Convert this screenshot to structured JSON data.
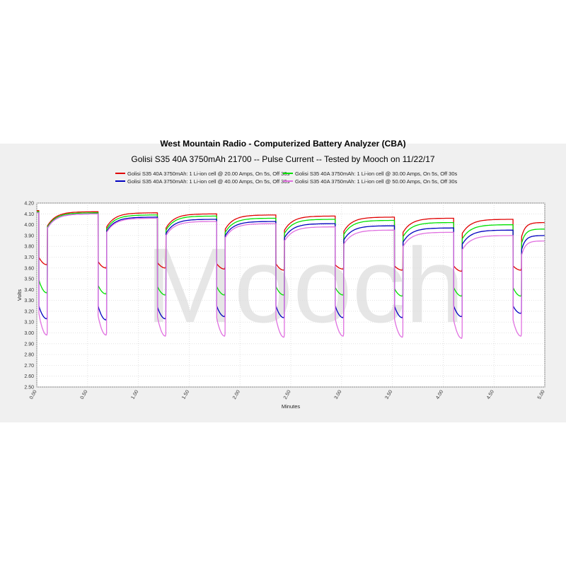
{
  "title": "West Mountain Radio - Computerized Battery Analyzer (CBA)",
  "subtitle": "Golisi S35 40A 3750mAh 21700 -- Pulse Current -- Tested by Mooch on 11/22/17",
  "watermark": "Mooch",
  "chart_data": {
    "type": "line",
    "title": "West Mountain Radio - Computerized Battery Analyzer (CBA)",
    "subtitle": "Golisi S35 40A 3750mAh 21700 -- Pulse Current -- Tested by Mooch on 11/22/17",
    "xlabel": "Minutes",
    "ylabel": "Volts",
    "xlim": [
      0,
      5
    ],
    "ylim": [
      2.5,
      4.2
    ],
    "grid": true,
    "legend_position": "top",
    "x_ticks": [
      "0.00",
      "0.50",
      "1.00",
      "1.50",
      "2.00",
      "2.50",
      "3.00",
      "3.50",
      "4.00",
      "4.50",
      "5.00"
    ],
    "y_ticks": [
      "4.20",
      "4.10",
      "4.00",
      "3.90",
      "3.80",
      "3.70",
      "3.60",
      "3.50",
      "3.40",
      "3.30",
      "3.20",
      "3.10",
      "3.00",
      "2.90",
      "2.80",
      "2.70",
      "2.60",
      "2.50"
    ],
    "pulse_on_seconds": 5,
    "pulse_off_seconds": 30,
    "pulse_starts_minutes": [
      0.02,
      0.603,
      1.187,
      1.77,
      2.353,
      2.937,
      3.52,
      4.103,
      4.687
    ],
    "series": [
      {
        "name": "Golisi S35 40A 3750mAh: 1 Li-ion cell @ 20.00 Amps, On 5s, Off 30s",
        "color": "#e00000",
        "rest_peak_volts": [
          4.12,
          4.11,
          4.1,
          4.09,
          4.08,
          4.07,
          4.06,
          4.05,
          4.02
        ],
        "load_start_volts": [
          3.7,
          3.66,
          3.65,
          3.64,
          3.64,
          3.63,
          3.62,
          3.62,
          3.62
        ],
        "load_end_volts": [
          3.63,
          3.6,
          3.6,
          3.59,
          3.58,
          3.59,
          3.58,
          3.57,
          3.58
        ]
      },
      {
        "name": "Golisi S35 40A 3750mAh: 1 Li-ion cell @ 30.00 Amps, On 5s, Off 30s",
        "color": "#00e000",
        "rest_peak_volts": [
          4.11,
          4.09,
          4.08,
          4.06,
          4.05,
          4.04,
          4.02,
          4.0,
          3.96
        ],
        "load_start_volts": [
          3.49,
          3.44,
          3.43,
          3.43,
          3.43,
          3.42,
          3.41,
          3.42,
          3.42
        ],
        "load_end_volts": [
          3.37,
          3.36,
          3.35,
          3.35,
          3.35,
          3.35,
          3.34,
          3.34,
          3.34
        ]
      },
      {
        "name": "Golisi S35 40A 3750mAh: 1 Li-ion cell @ 40.00 Amps, On 5s, Off 30s",
        "color": "#0000c0",
        "rest_peak_volts": [
          4.1,
          4.07,
          4.05,
          4.03,
          4.01,
          3.99,
          3.97,
          3.95,
          3.9
        ],
        "load_start_volts": [
          3.25,
          3.25,
          3.24,
          3.25,
          3.25,
          3.25,
          3.25,
          3.25,
          3.25
        ],
        "load_end_volts": [
          3.13,
          3.12,
          3.13,
          3.15,
          3.14,
          3.14,
          3.14,
          3.15,
          3.18
        ]
      },
      {
        "name": "Golisi S35 40A 3750mAh: 1 Li-ion cell @ 50.00 Amps, On 5s, Off 30s",
        "color": "#e070e0",
        "rest_peak_volts": [
          4.1,
          4.06,
          4.03,
          4.01,
          3.98,
          3.95,
          3.93,
          3.9,
          3.85
        ],
        "load_start_volts": [
          3.18,
          3.16,
          3.15,
          3.14,
          3.14,
          3.13,
          3.13,
          3.12,
          3.12
        ],
        "load_end_volts": [
          2.98,
          2.98,
          2.97,
          2.97,
          2.96,
          2.97,
          2.96,
          2.95,
          2.97
        ]
      }
    ]
  }
}
